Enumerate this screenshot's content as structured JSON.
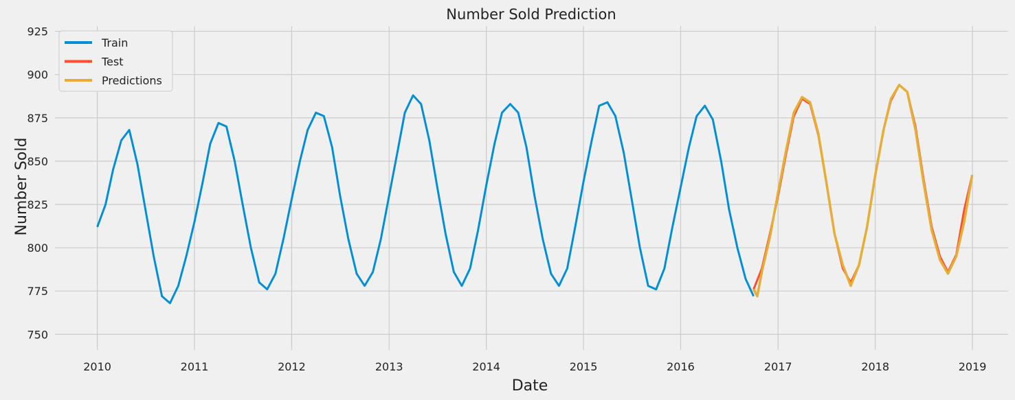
{
  "chart_data": {
    "type": "line",
    "title": "Number Sold Prediction",
    "xlabel": "Date",
    "ylabel": "Number Sold",
    "x_ticks": [
      "2010",
      "2011",
      "2012",
      "2013",
      "2014",
      "2015",
      "2016",
      "2017",
      "2018",
      "2019"
    ],
    "y_ticks": [
      "750",
      "775",
      "800",
      "825",
      "850",
      "875",
      "900",
      "925"
    ],
    "xlim": [
      "2009-07-26",
      "2019-05-15"
    ],
    "ylim": [
      741,
      928
    ],
    "grid": true,
    "legend_position": "top-left",
    "series": [
      {
        "name": "Train",
        "color": "#008fd5",
        "x": [
          "2010-01-01",
          "2010-02-01",
          "2010-03-01",
          "2010-04-01",
          "2010-05-01",
          "2010-06-01",
          "2010-07-01",
          "2010-08-01",
          "2010-09-01",
          "2010-10-01",
          "2010-11-01",
          "2010-12-01",
          "2011-01-01",
          "2011-02-01",
          "2011-03-01",
          "2011-04-01",
          "2011-05-01",
          "2011-06-01",
          "2011-07-01",
          "2011-08-01",
          "2011-09-01",
          "2011-10-01",
          "2011-11-01",
          "2011-12-01",
          "2012-01-01",
          "2012-02-01",
          "2012-03-01",
          "2012-04-01",
          "2012-05-01",
          "2012-06-01",
          "2012-07-01",
          "2012-08-01",
          "2012-09-01",
          "2012-10-01",
          "2012-11-01",
          "2012-12-01",
          "2013-01-01",
          "2013-02-01",
          "2013-03-01",
          "2013-04-01",
          "2013-05-01",
          "2013-06-01",
          "2013-07-01",
          "2013-08-01",
          "2013-09-01",
          "2013-10-01",
          "2013-11-01",
          "2013-12-01",
          "2014-01-01",
          "2014-02-01",
          "2014-03-01",
          "2014-04-01",
          "2014-05-01",
          "2014-06-01",
          "2014-07-01",
          "2014-08-01",
          "2014-09-01",
          "2014-10-01",
          "2014-11-01",
          "2014-12-01",
          "2015-01-01",
          "2015-02-01",
          "2015-03-01",
          "2015-04-01",
          "2015-05-01",
          "2015-06-01",
          "2015-07-01",
          "2015-08-01",
          "2015-09-01",
          "2015-10-01",
          "2015-11-01",
          "2015-12-01",
          "2016-01-01",
          "2016-02-01",
          "2016-03-01",
          "2016-04-01",
          "2016-05-01",
          "2016-06-01",
          "2016-07-01",
          "2016-08-01",
          "2016-09-01",
          "2016-10-01"
        ],
        "y": [
          812,
          825,
          845,
          862,
          868,
          848,
          822,
          795,
          772,
          768,
          778,
          795,
          815,
          838,
          860,
          872,
          870,
          850,
          825,
          800,
          780,
          776,
          785,
          805,
          828,
          850,
          868,
          878,
          876,
          858,
          830,
          805,
          785,
          778,
          786,
          805,
          830,
          855,
          878,
          888,
          883,
          862,
          835,
          808,
          786,
          778,
          788,
          810,
          836,
          860,
          878,
          883,
          878,
          858,
          830,
          805,
          785,
          778,
          788,
          812,
          838,
          862,
          882,
          884,
          876,
          855,
          828,
          800,
          778,
          776,
          788,
          812,
          835,
          858,
          876,
          882,
          874,
          850,
          822,
          800,
          782,
          772
        ]
      },
      {
        "name": "Test",
        "color": "#fc4f30",
        "x": [
          "2016-10-01",
          "2016-11-01",
          "2016-12-01",
          "2017-01-01",
          "2017-02-01",
          "2017-03-01",
          "2017-04-01",
          "2017-05-01",
          "2017-06-01",
          "2017-07-01",
          "2017-08-01",
          "2017-09-01",
          "2017-10-01",
          "2017-11-01",
          "2017-12-01",
          "2018-01-01",
          "2018-02-01",
          "2018-03-01",
          "2018-04-01",
          "2018-05-01",
          "2018-06-01",
          "2018-07-01",
          "2018-08-01",
          "2018-09-01",
          "2018-10-01",
          "2018-11-01",
          "2018-12-01",
          "2018-12-31"
        ],
        "y": [
          776,
          788,
          808,
          830,
          855,
          876,
          886,
          883,
          865,
          838,
          808,
          788,
          780,
          790,
          812,
          842,
          868,
          885,
          894,
          890,
          870,
          840,
          812,
          795,
          786,
          796,
          822,
          842
        ]
      },
      {
        "name": "Predictions",
        "color": "#e5ae38",
        "x": [
          "2016-10-01",
          "2016-10-15",
          "2016-11-01",
          "2016-12-01",
          "2017-01-01",
          "2017-02-01",
          "2017-03-01",
          "2017-04-01",
          "2017-05-01",
          "2017-06-01",
          "2017-07-01",
          "2017-08-01",
          "2017-09-01",
          "2017-10-01",
          "2017-11-01",
          "2017-12-01",
          "2018-01-01",
          "2018-02-01",
          "2018-03-01",
          "2018-04-01",
          "2018-05-01",
          "2018-06-01",
          "2018-07-01",
          "2018-08-01",
          "2018-09-01",
          "2018-10-01",
          "2018-11-01",
          "2018-12-01",
          "2018-12-31"
        ],
        "y": [
          776,
          772,
          786,
          806,
          832,
          857,
          878,
          887,
          884,
          866,
          838,
          808,
          790,
          778,
          790,
          812,
          842,
          868,
          886,
          894,
          890,
          868,
          838,
          810,
          793,
          785,
          795,
          815,
          842
        ]
      }
    ]
  }
}
